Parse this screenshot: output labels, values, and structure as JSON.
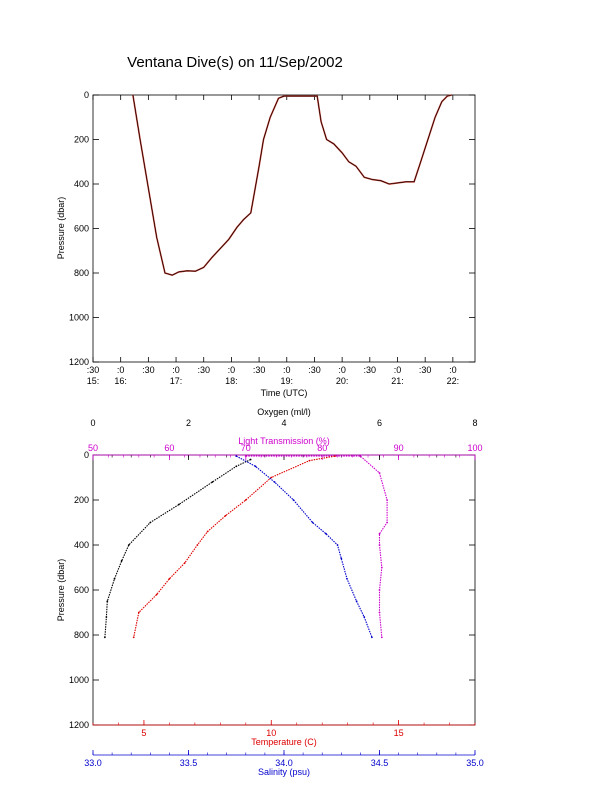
{
  "title": "Ventana Dive(s) on 11/Sep/2002",
  "colors": {
    "axis": "#000000",
    "oxygen": "#000000",
    "transmission": "#cc00cc",
    "temperature": "#dd0000",
    "salinity": "#0000cc",
    "dive_fill": "#c0392b"
  },
  "chart_data": [
    {
      "type": "line",
      "xlabel": "Time (UTC)",
      "ylabel": "Pressure (dbar)",
      "xlim": [
        15.5,
        22.4
      ],
      "ylim": [
        1200,
        0
      ],
      "y_inverted": true,
      "x_ticks": [
        {
          "x": 15.5,
          "top": ":30",
          "bottom": "15:"
        },
        {
          "x": 16.0,
          "top": ":0",
          "bottom": "16:"
        },
        {
          "x": 16.5,
          "top": ":30",
          "bottom": ""
        },
        {
          "x": 17.0,
          "top": ":0",
          "bottom": "17:"
        },
        {
          "x": 17.5,
          "top": ":30",
          "bottom": ""
        },
        {
          "x": 18.0,
          "top": ":0",
          "bottom": "18:"
        },
        {
          "x": 18.5,
          "top": ":30",
          "bottom": ""
        },
        {
          "x": 19.0,
          "top": ":0",
          "bottom": "19:"
        },
        {
          "x": 19.5,
          "top": ":30",
          "bottom": ""
        },
        {
          "x": 20.0,
          "top": ":0",
          "bottom": "20:"
        },
        {
          "x": 20.5,
          "top": ":30",
          "bottom": ""
        },
        {
          "x": 21.0,
          "top": ":0",
          "bottom": "21:"
        },
        {
          "x": 21.5,
          "top": ":30",
          "bottom": ""
        },
        {
          "x": 22.0,
          "top": ":0",
          "bottom": "22:"
        }
      ],
      "y_ticks": [
        "0",
        "200",
        "400",
        "600",
        "800",
        "1000",
        "1200"
      ],
      "y_tick_values": [
        0,
        200,
        400,
        600,
        800,
        1000,
        1200
      ],
      "series": [
        {
          "x": [
            16.22,
            16.35,
            16.5,
            16.65,
            16.8,
            16.93,
            17.05,
            17.2,
            17.35,
            17.5,
            17.65,
            17.8,
            17.95,
            18.1,
            18.22,
            18.35,
            18.5,
            18.58,
            18.7,
            18.85,
            18.95,
            19.05,
            19.2,
            19.38,
            19.55,
            19.62,
            19.72,
            19.85,
            20.0,
            20.12,
            20.25,
            20.4,
            20.55,
            20.7,
            20.85,
            21.0,
            21.15,
            21.3,
            21.42,
            21.55,
            21.68,
            21.8,
            21.9,
            21.98
          ],
          "y": [
            0,
            200,
            420,
            640,
            800,
            810,
            795,
            790,
            792,
            775,
            730,
            690,
            650,
            595,
            560,
            530,
            320,
            200,
            100,
            15,
            5,
            5,
            5,
            5,
            5,
            120,
            200,
            220,
            260,
            300,
            320,
            370,
            380,
            385,
            400,
            395,
            390,
            390,
            300,
            200,
            100,
            30,
            5,
            0
          ]
        }
      ]
    },
    {
      "type": "scatter",
      "ylabel": "Pressure (dbar)",
      "ylim": [
        1200,
        0
      ],
      "y_inverted": true,
      "y_ticks": [
        "0",
        "200",
        "400",
        "600",
        "800",
        "1000",
        "1200"
      ],
      "y_tick_values": [
        0,
        200,
        400,
        600,
        800,
        1000,
        1200
      ],
      "axes": {
        "oxygen": {
          "label": "Oxygen (ml/l)",
          "range": [
            0,
            8
          ],
          "ticks": [
            "0",
            "2",
            "4",
            "6",
            "8"
          ],
          "tick_values": [
            0,
            2,
            4,
            6,
            8
          ]
        },
        "transmission": {
          "label": "Light Transmission (%)",
          "range": [
            50,
            100
          ],
          "ticks": [
            "50",
            "60",
            "70",
            "80",
            "90",
            "100"
          ],
          "tick_values": [
            50,
            60,
            70,
            80,
            90,
            100
          ]
        },
        "temperature": {
          "label": "Temperature (C)",
          "range": [
            3,
            18
          ],
          "ticks": [
            "5",
            "10",
            "15"
          ],
          "tick_values": [
            5,
            10,
            15
          ]
        },
        "salinity": {
          "label": "Salinity (psu)",
          "range": [
            33.0,
            35.0
          ],
          "ticks": [
            "33.0",
            "33.5",
            "34.0",
            "34.5",
            "35.0"
          ],
          "tick_values": [
            33.0,
            33.5,
            34.0,
            34.5,
            35.0
          ]
        }
      },
      "series": [
        {
          "name": "oxygen",
          "x": [
            3.3,
            3.0,
            2.5,
            1.8,
            1.2,
            0.75,
            0.6,
            0.45,
            0.3,
            0.28,
            0.25
          ],
          "y": [
            20,
            50,
            120,
            220,
            300,
            400,
            470,
            550,
            650,
            720,
            810
          ]
        },
        {
          "name": "transmission",
          "x": [
            70,
            85,
            87.5,
            88.5,
            88.5,
            87.5,
            87.5,
            87.8,
            87.5,
            87.5,
            87.8
          ],
          "y": [
            5,
            5,
            80,
            200,
            300,
            350,
            400,
            500,
            600,
            700,
            810
          ]
        },
        {
          "name": "temperature",
          "x": [
            12.5,
            11.5,
            10.0,
            9.0,
            8.2,
            7.5,
            7.1,
            6.6,
            6.0,
            5.5,
            4.8,
            4.6
          ],
          "y": [
            5,
            25,
            100,
            200,
            270,
            340,
            400,
            480,
            550,
            620,
            700,
            810
          ]
        },
        {
          "name": "salinity",
          "x": [
            33.75,
            33.85,
            33.95,
            34.05,
            34.15,
            34.22,
            34.28,
            34.3,
            34.33,
            34.38,
            34.42,
            34.46
          ],
          "y": [
            5,
            50,
            120,
            200,
            300,
            350,
            400,
            460,
            550,
            650,
            720,
            810
          ]
        }
      ]
    }
  ]
}
